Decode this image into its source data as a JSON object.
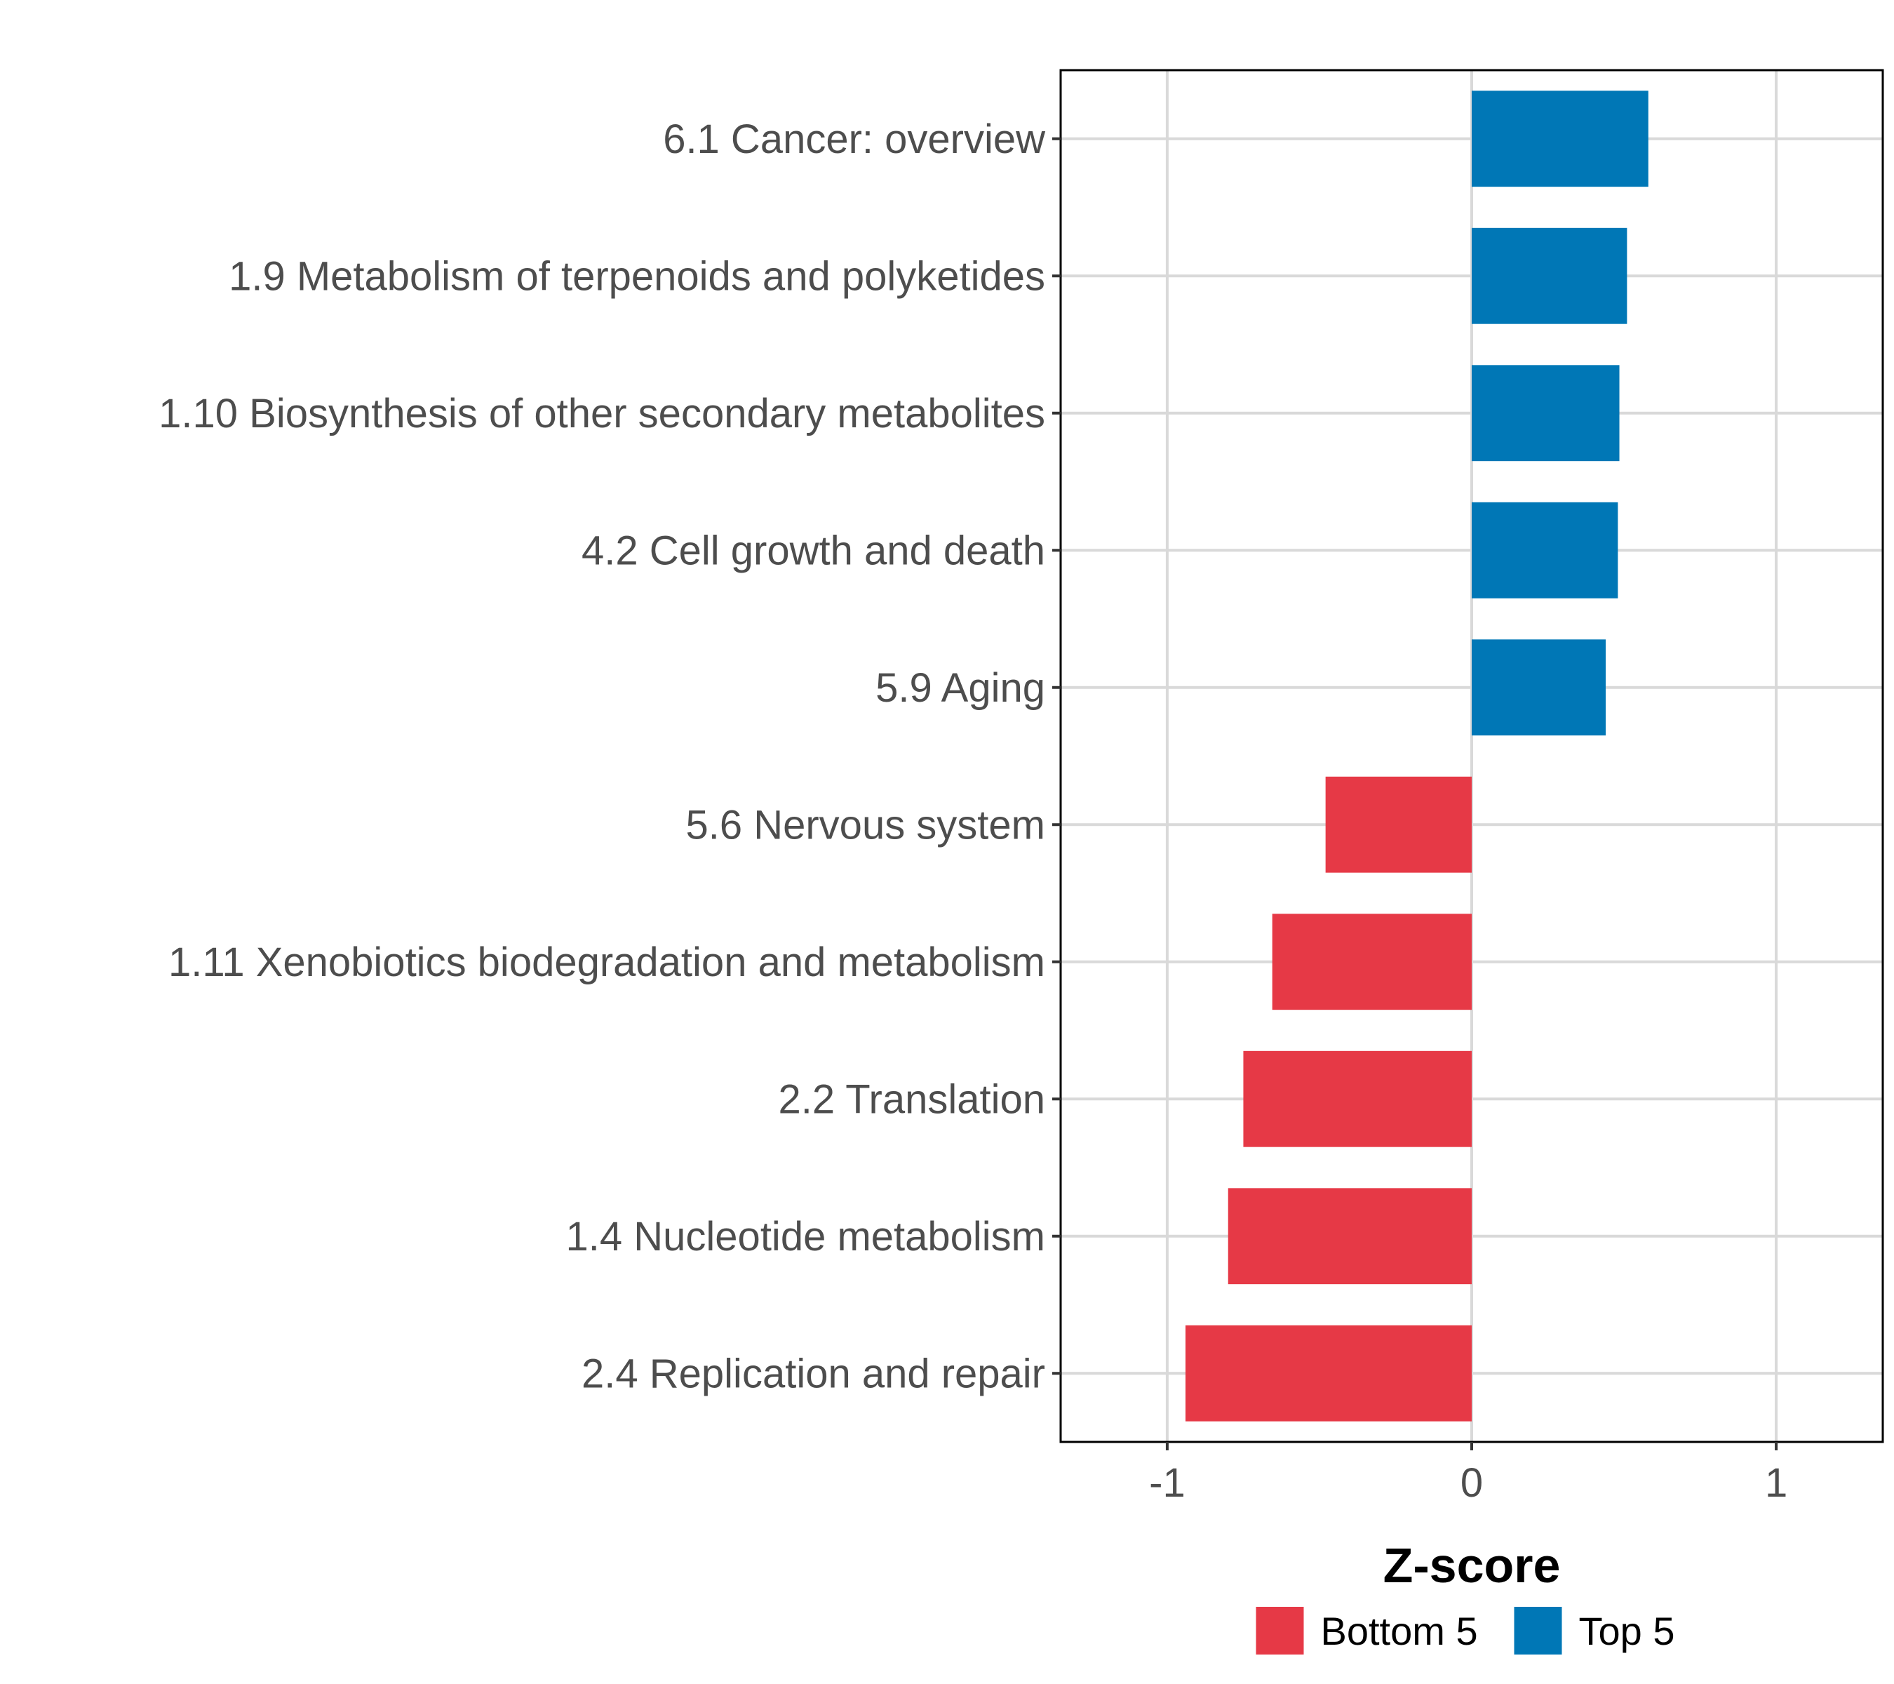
{
  "chart_data": {
    "type": "bar",
    "orientation": "horizontal",
    "title": "",
    "xlabel": "Z-score",
    "ylabel": "",
    "xlim": [
      -1.35,
      1.35
    ],
    "xticks": [
      -1,
      0,
      1
    ],
    "xtick_labels": [
      "-1",
      "0",
      "1"
    ],
    "grid": true,
    "legend_position": "bottom",
    "categories": [
      "6.1 Cancer: overview",
      "1.9 Metabolism of terpenoids and polyketides",
      "1.10 Biosynthesis of other secondary metabolites",
      "4.2 Cell growth and death",
      "5.9 Aging",
      "5.6 Nervous system",
      "1.11 Xenobiotics biodegradation and metabolism",
      "2.2 Translation",
      "1.4 Nucleotide metabolism",
      "2.4 Replication and repair"
    ],
    "values": [
      0.58,
      0.51,
      0.485,
      0.48,
      0.44,
      -0.48,
      -0.655,
      -0.75,
      -0.8,
      -0.94
    ],
    "groups": [
      "Top 5",
      "Top 5",
      "Top 5",
      "Top 5",
      "Top 5",
      "Bottom 5",
      "Bottom 5",
      "Bottom 5",
      "Bottom 5",
      "Bottom 5"
    ],
    "legend": [
      {
        "name": "Bottom 5",
        "color": "#E63946"
      },
      {
        "name": "Top 5",
        "color": "#0077B6"
      }
    ]
  }
}
